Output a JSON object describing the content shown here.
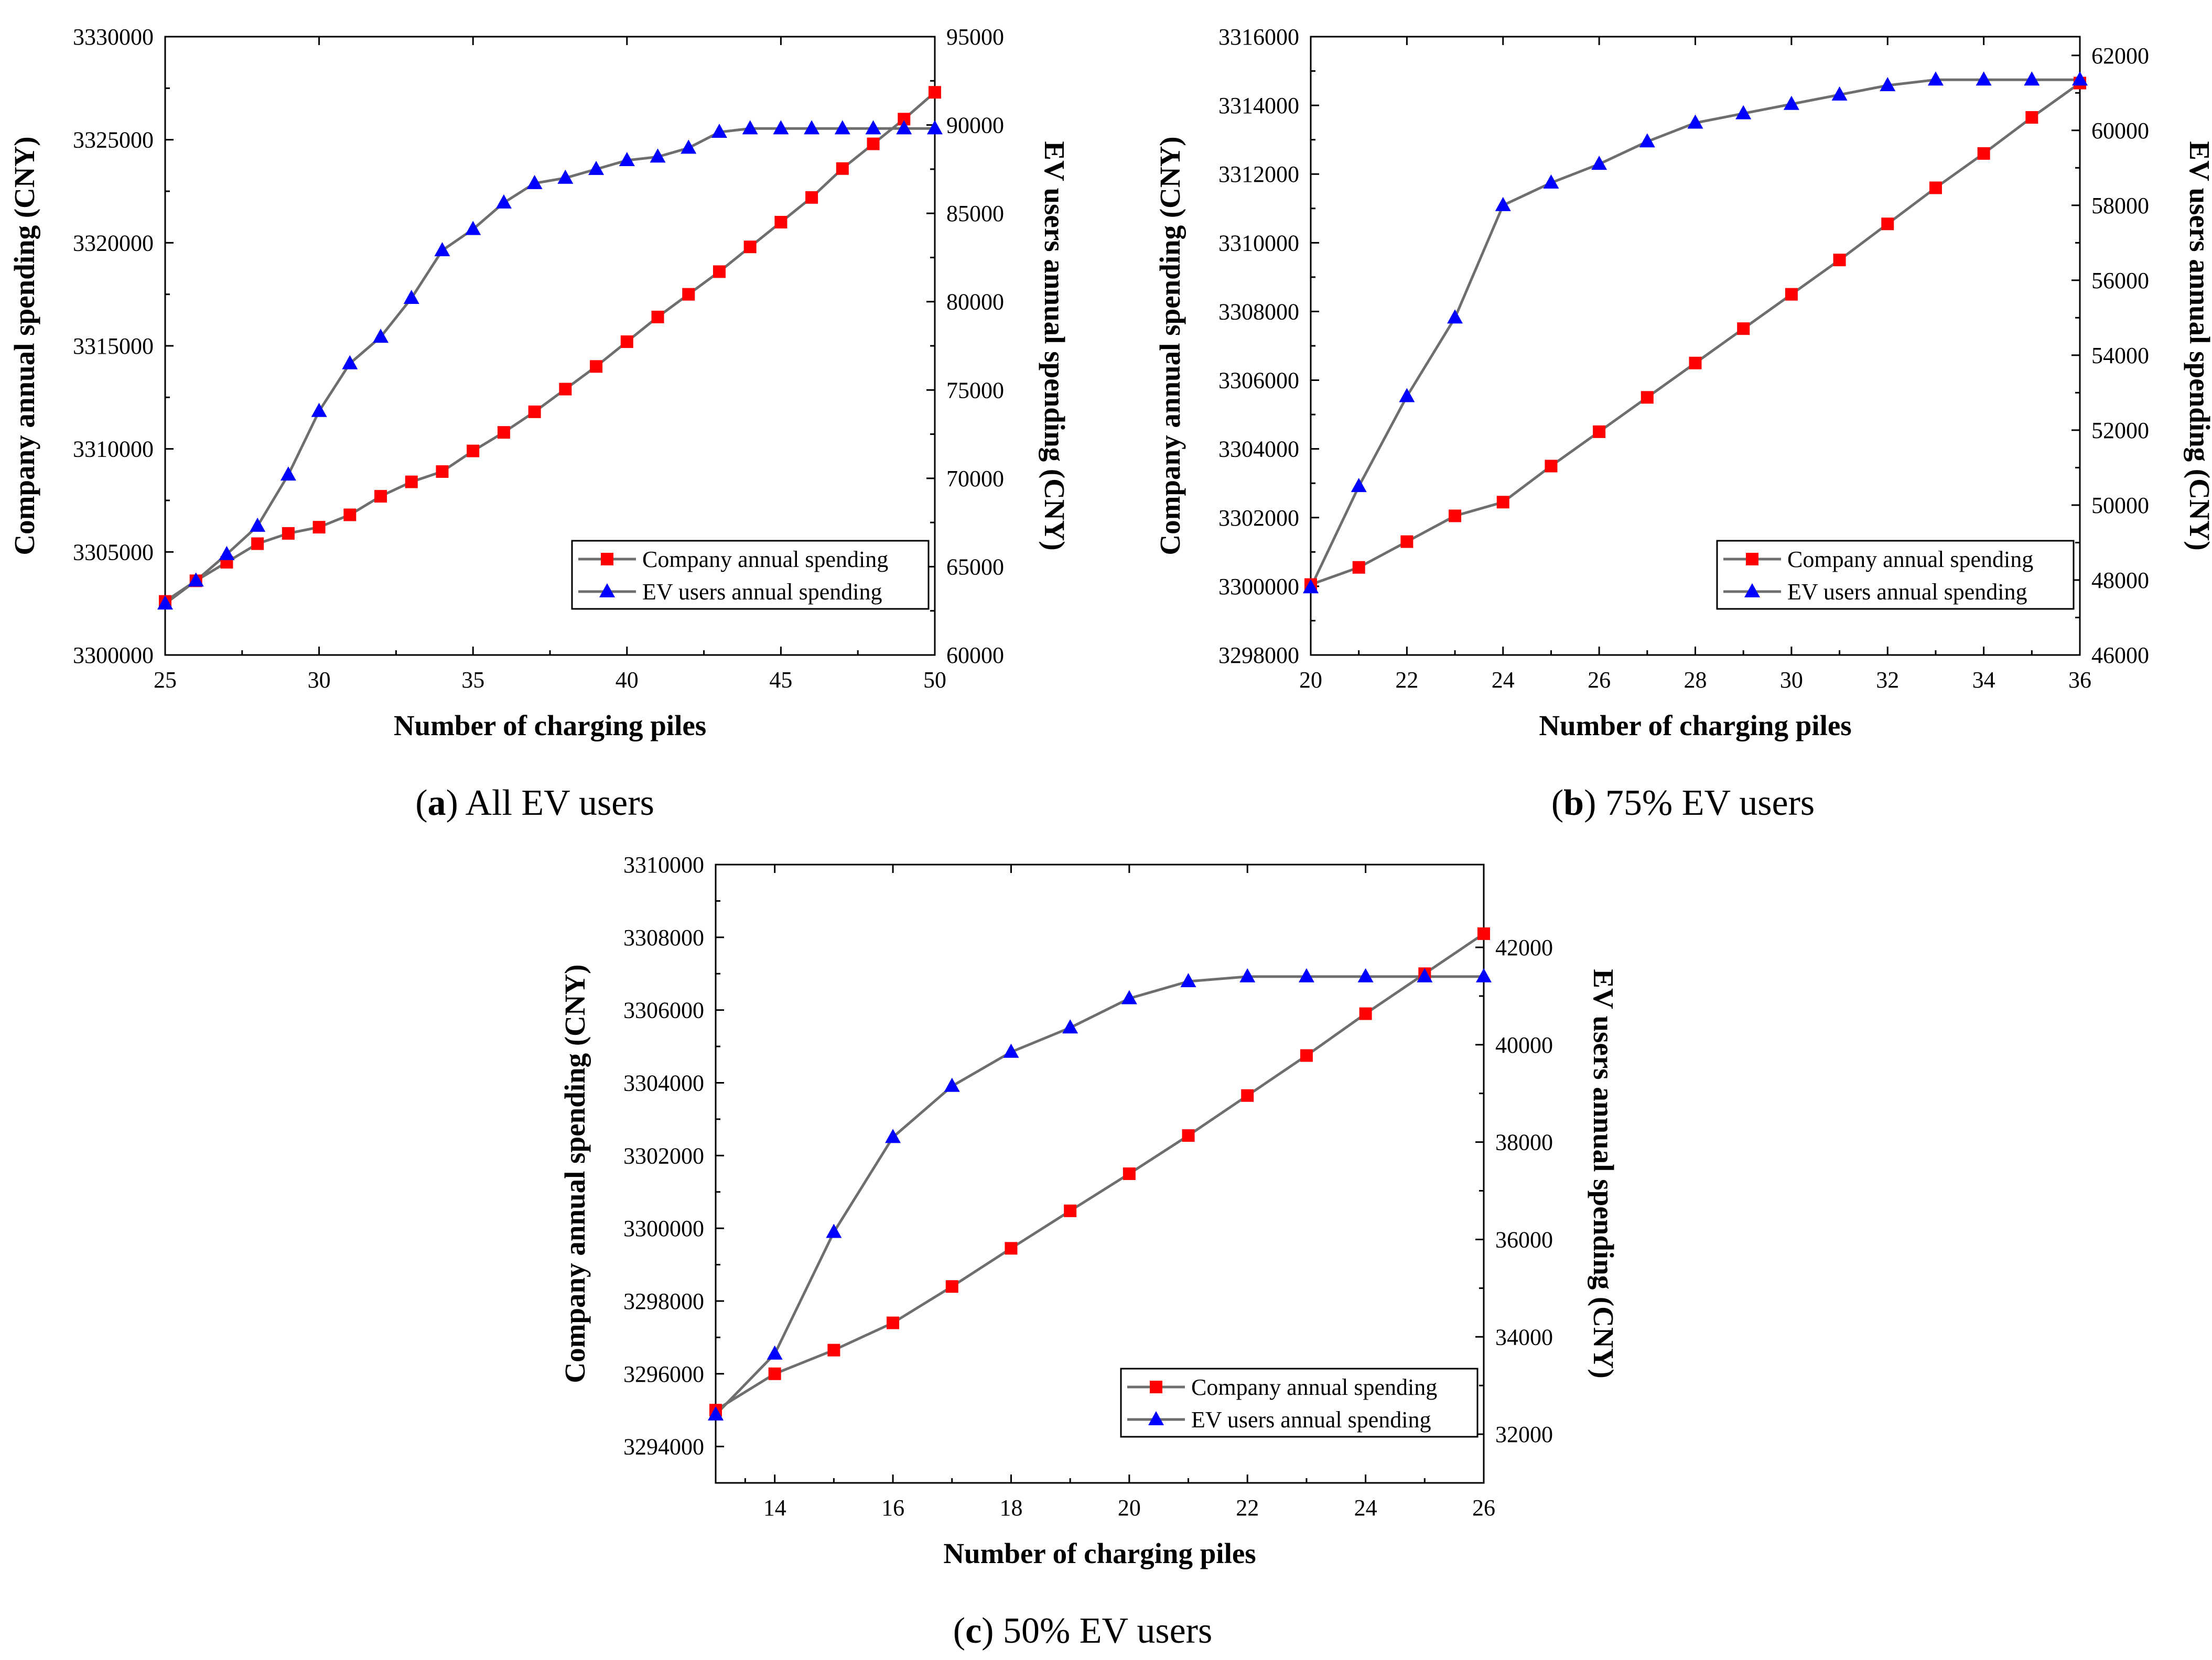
{
  "colors": {
    "company_marker": "#ff0000",
    "ev_marker": "#0000ff",
    "line": "#6e6e6e"
  },
  "chart_data": [
    {
      "type": "line",
      "panel": "a",
      "caption_letter": "a",
      "caption_text": " All EV users",
      "xlabel": "Number of charging piles",
      "ylabel_left": "Company annual spending (CNY)",
      "ylabel_right": "EV users annual spending (CNY)",
      "xlim": [
        25,
        50
      ],
      "ylim_left": [
        3300000,
        3330000
      ],
      "ylim_right": [
        60000,
        95000
      ],
      "x_ticks": [
        "25",
        "30",
        "35",
        "40",
        "45",
        "50"
      ],
      "y_left_ticks": [
        "3300000",
        "3305000",
        "3310000",
        "3315000",
        "3320000",
        "3325000",
        "3330000"
      ],
      "y_right_ticks": [
        "60000",
        "65000",
        "70000",
        "75000",
        "80000",
        "85000",
        "90000",
        "95000"
      ],
      "legend": [
        "Company annual spending",
        "EV users annual spending"
      ],
      "legend_position": "bottom-right",
      "x": [
        25,
        26,
        27,
        28,
        29,
        30,
        31,
        32,
        33,
        34,
        35,
        36,
        37,
        38,
        39,
        40,
        41,
        42,
        43,
        44,
        45,
        46,
        47,
        48,
        49,
        50
      ],
      "series": [
        {
          "name": "Company annual spending",
          "axis": "left",
          "marker": "square",
          "values": [
            3302600,
            3303600,
            3304500,
            3305400,
            3305900,
            3306200,
            3306800,
            3307700,
            3308400,
            3308900,
            3309900,
            3310800,
            3311800,
            3312900,
            3314000,
            3315200,
            3316400,
            3317500,
            3318600,
            3319800,
            3321000,
            3322200,
            3323600,
            3324800,
            3326000,
            3327300
          ]
        },
        {
          "name": "EV users annual spending",
          "axis": "right",
          "marker": "triangle",
          "values": [
            62900,
            64200,
            65700,
            67300,
            70200,
            73800,
            76500,
            78000,
            80200,
            82900,
            84100,
            85600,
            86700,
            87000,
            87500,
            88000,
            88200,
            88700,
            89600,
            89800,
            89800,
            89800,
            89800,
            89800,
            89800,
            89800
          ]
        }
      ]
    },
    {
      "type": "line",
      "panel": "b",
      "caption_letter": "b",
      "caption_text": " 75% EV users",
      "xlabel": "Number of charging piles",
      "ylabel_left": "Company annual spending (CNY)",
      "ylabel_right": "EV users annual spending (CNY)",
      "xlim": [
        20,
        36
      ],
      "ylim_left": [
        3298000,
        3316000
      ],
      "ylim_right": [
        46000,
        62500
      ],
      "x_ticks": [
        "20",
        "22",
        "24",
        "26",
        "28",
        "30",
        "32",
        "34",
        "36"
      ],
      "y_left_ticks": [
        "3298000",
        "3300000",
        "3302000",
        "3304000",
        "3306000",
        "3308000",
        "3310000",
        "3312000",
        "3314000",
        "3316000"
      ],
      "y_right_ticks": [
        "46000",
        "48000",
        "50000",
        "52000",
        "54000",
        "56000",
        "58000",
        "60000",
        "62000"
      ],
      "legend": [
        "Company annual spending",
        "EV users annual spending"
      ],
      "legend_position": "bottom-right",
      "x": [
        20,
        21,
        22,
        23,
        24,
        25,
        26,
        27,
        28,
        29,
        30,
        31,
        32,
        33,
        34,
        35,
        36
      ],
      "series": [
        {
          "name": "Company annual spending",
          "axis": "left",
          "marker": "square",
          "values": [
            3300050,
            3300550,
            3301300,
            3302050,
            3302450,
            3303500,
            3304500,
            3305500,
            3306500,
            3307500,
            3308500,
            3309500,
            3310550,
            3311600,
            3312600,
            3313650,
            3314650
          ]
        },
        {
          "name": "EV users annual spending",
          "axis": "right",
          "marker": "triangle",
          "values": [
            47800,
            50500,
            52900,
            55000,
            58000,
            58600,
            59100,
            59700,
            60200,
            60450,
            60700,
            60950,
            61200,
            61350,
            61350,
            61350,
            61350
          ]
        }
      ]
    },
    {
      "type": "line",
      "panel": "c",
      "caption_letter": "c",
      "caption_text": " 50% EV users",
      "xlabel": "Number of charging piles",
      "ylabel_left": "Company annual spending (CNY)",
      "ylabel_right": "EV users annual spending (CNY)",
      "xlim": [
        13,
        26
      ],
      "ylim_left": [
        3293000,
        3310000
      ],
      "ylim_right": [
        31000,
        43700
      ],
      "x_ticks": [
        "14",
        "16",
        "18",
        "20",
        "22",
        "24",
        "26"
      ],
      "x_tick_values": [
        14,
        16,
        18,
        20,
        22,
        24,
        26
      ],
      "y_left_ticks": [
        "3294000",
        "3296000",
        "3298000",
        "3300000",
        "3302000",
        "3304000",
        "3306000",
        "3308000",
        "3310000"
      ],
      "y_right_ticks": [
        "32000",
        "34000",
        "36000",
        "38000",
        "40000",
        "42000"
      ],
      "legend": [
        "Company annual spending",
        "EV users annual spending"
      ],
      "legend_position": "bottom-right",
      "x": [
        13,
        14,
        15,
        16,
        17,
        18,
        19,
        20,
        21,
        22,
        23,
        24,
        25,
        26
      ],
      "series": [
        {
          "name": "Company annual spending",
          "axis": "left",
          "marker": "square",
          "values": [
            3295000,
            3296000,
            3296650,
            3297400,
            3298400,
            3299450,
            3300480,
            3301500,
            3302550,
            3303650,
            3304750,
            3305900,
            3307000,
            3308100
          ]
        },
        {
          "name": "EV users annual spending",
          "axis": "right",
          "marker": "triangle",
          "values": [
            32400,
            33650,
            36150,
            38100,
            39150,
            39850,
            40350,
            40950,
            41300,
            41400,
            41400,
            41400,
            41400,
            41400
          ]
        }
      ]
    }
  ]
}
